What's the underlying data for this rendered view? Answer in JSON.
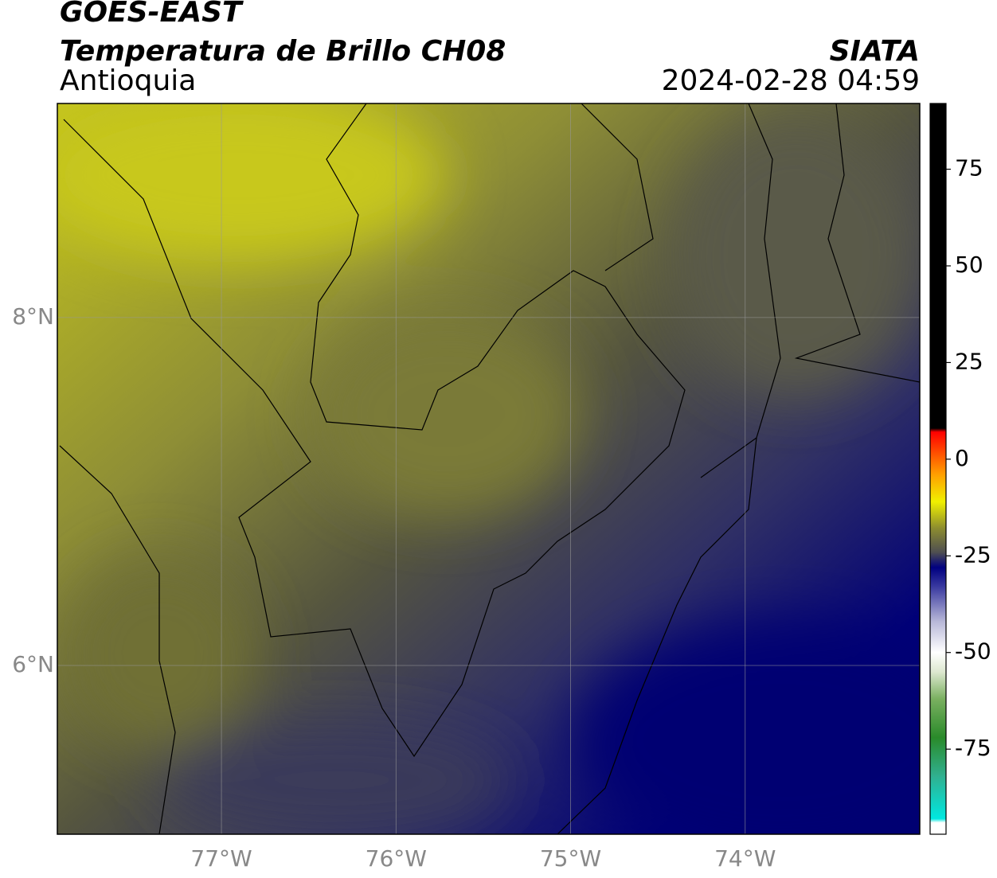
{
  "chart_data": {
    "type": "map",
    "title": "GOES-EAST",
    "subtitle": "Temperatura de Brillo CH08",
    "region": "Antioquia",
    "source": "SIATA",
    "timestamp": "2024-02-28 04:59",
    "xlim": [
      -77.94,
      -73.0
    ],
    "ylim": [
      5.03,
      9.23
    ],
    "xticks": [
      {
        "value": -77,
        "label": "77°W"
      },
      {
        "value": -76,
        "label": "76°W"
      },
      {
        "value": -75,
        "label": "75°W"
      },
      {
        "value": -74,
        "label": "74°W"
      }
    ],
    "yticks": [
      {
        "value": 6,
        "label": "6°N"
      },
      {
        "value": 8,
        "label": "8°N"
      }
    ],
    "grid": true,
    "colorbar": {
      "lim": [
        -97,
        92
      ],
      "ticks": [
        -75,
        -50,
        -25,
        0,
        25,
        50,
        75
      ],
      "stops": [
        {
          "value": -97,
          "color": "#ffffff"
        },
        {
          "value": -94,
          "color": "#ffffff"
        },
        {
          "value": -93,
          "color": "#00e8e0"
        },
        {
          "value": -82,
          "color": "#30b090"
        },
        {
          "value": -72,
          "color": "#2a8a2a"
        },
        {
          "value": -62,
          "color": "#7ab060"
        },
        {
          "value": -55,
          "color": "#dde8d0"
        },
        {
          "value": -50,
          "color": "#ffffff"
        },
        {
          "value": -42,
          "color": "#b8b8d8"
        },
        {
          "value": -33,
          "color": "#3a3aa0"
        },
        {
          "value": -28,
          "color": "#000080"
        },
        {
          "value": -24,
          "color": "#505050"
        },
        {
          "value": -18,
          "color": "#8a8a30"
        },
        {
          "value": -11,
          "color": "#f0f000"
        },
        {
          "value": -4,
          "color": "#ffa000"
        },
        {
          "value": 7,
          "color": "#ff0000"
        },
        {
          "value": 8,
          "color": "#000000"
        },
        {
          "value": 92,
          "color": "#000000"
        }
      ]
    }
  }
}
